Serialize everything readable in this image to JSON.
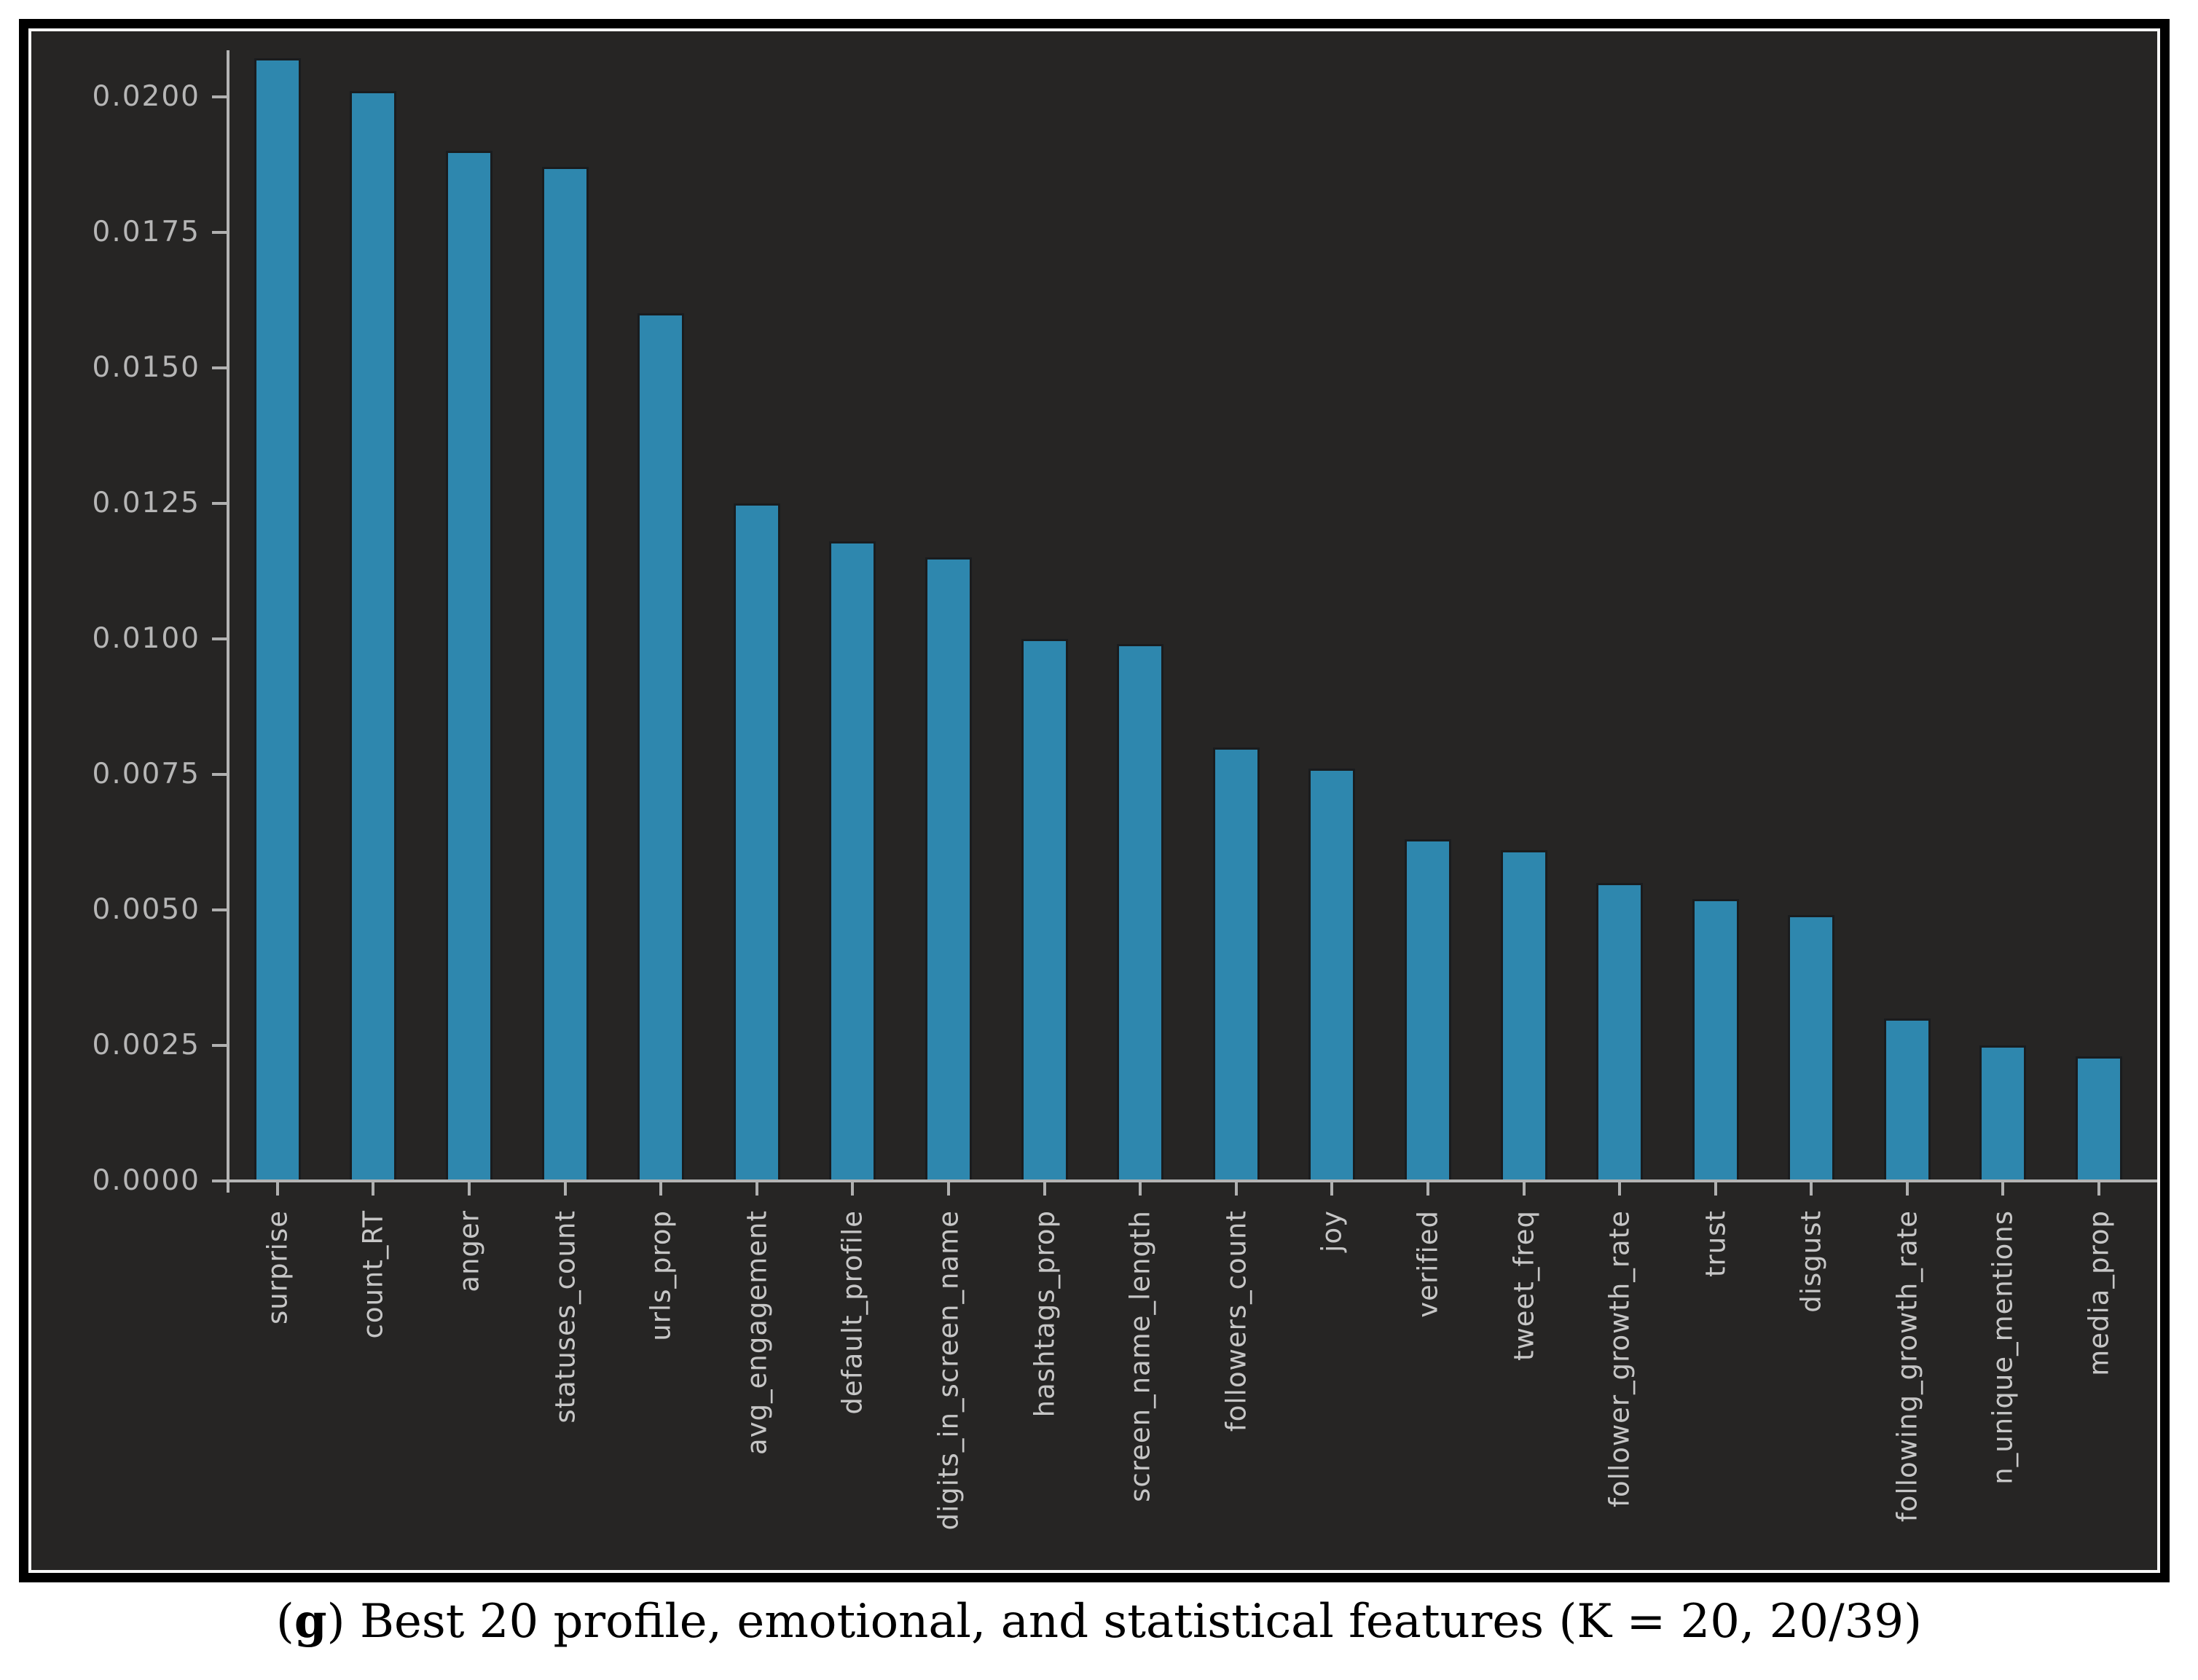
{
  "caption": {
    "open": "(",
    "marker": "g",
    "close": ")",
    "text": " Best 20 profile, emotional, and statistical features (K = 20, 20/39)"
  },
  "chart_data": {
    "type": "bar",
    "title": "",
    "xlabel": "",
    "ylabel": "",
    "categories": [
      "surprise",
      "count_RT",
      "anger",
      "statuses_count",
      "urls_prop",
      "avg_engagement",
      "default_profile",
      "digits_in_screen_name",
      "hashtags_prop",
      "screen_name_length",
      "followers_count",
      "joy",
      "verified",
      "tweet_freq",
      "follower_growth_rate",
      "trust",
      "disgust",
      "following_growth_rate",
      "n_unique_mentions",
      "media_prop"
    ],
    "values": [
      0.0207,
      0.0201,
      0.019,
      0.0187,
      0.016,
      0.0125,
      0.0118,
      0.0115,
      0.01,
      0.0099,
      0.008,
      0.0076,
      0.0063,
      0.0061,
      0.0055,
      0.0052,
      0.0049,
      0.003,
      0.0025,
      0.0023
    ],
    "yticks": [
      0.0,
      0.0025,
      0.005,
      0.0075,
      0.01,
      0.0125,
      0.015,
      0.0175,
      0.02
    ],
    "ytick_labels": [
      "0.0000",
      "0.0025",
      "0.0050",
      "0.0075",
      "0.0100",
      "0.0125",
      "0.0150",
      "0.0175",
      "0.0200"
    ],
    "ylim": [
      0,
      0.0208
    ],
    "grid": false,
    "legend_position": "none",
    "bar_color": "#2e87ae",
    "panel_background": "#262524",
    "axis_color": "#b4b4b4",
    "tick_label_color": "#c6c6c6"
  }
}
